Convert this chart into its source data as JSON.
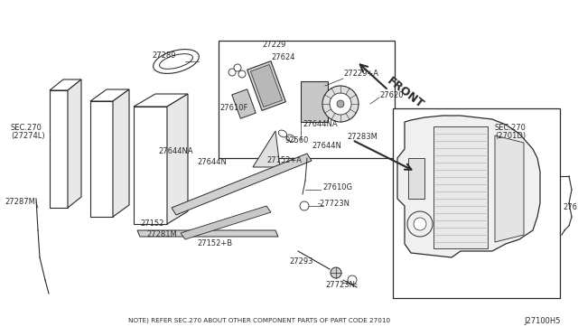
{
  "bg_color": "#ffffff",
  "line_color": "#2a2a2a",
  "note_text": "NOTE) REFER SEC.270 ABOUT OTHER COMPONENT PARTS OF PART CODE 27010",
  "diagram_id": "J27100H5",
  "front_label": "FRONT",
  "figsize": [
    6.4,
    3.72
  ],
  "dpi": 100
}
